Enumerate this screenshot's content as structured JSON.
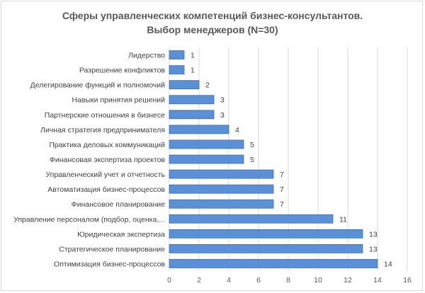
{
  "chart_data": {
    "type": "bar",
    "orientation": "horizontal",
    "title_line1": "Сферы управленческих компетенций бизнес-консультантов.",
    "title_line2": "Выбор менеджеров (N=30)",
    "categories": [
      "Лидерство",
      "Разрешение конфликтов",
      "Делегирование функций и полномочий",
      "Навыки принятия решений",
      "Партнерские отношения в бизнесе",
      "Личная стратегия предпринимателя",
      "Практика деловых коммуникаций",
      "Финансовая экспертиза проектов",
      "Управленческий учет и отчетность",
      "Автоматизация бизнес-процессов",
      "Финансовое планирование",
      "Управление персоналом (подбор, оценка,...",
      "Юридическая экспертиза",
      "Стратегическое планирование",
      "Оптимизация бизнес-процессов"
    ],
    "values": [
      1,
      1,
      2,
      3,
      3,
      4,
      5,
      5,
      7,
      7,
      7,
      11,
      13,
      13,
      14
    ],
    "xlim": [
      0,
      16
    ],
    "xticks": [
      0,
      2,
      4,
      6,
      8,
      10,
      12,
      14,
      16
    ],
    "grid": true,
    "bar_color": "#5b8fd6",
    "bar_edge_color": "#3f6fb5"
  }
}
